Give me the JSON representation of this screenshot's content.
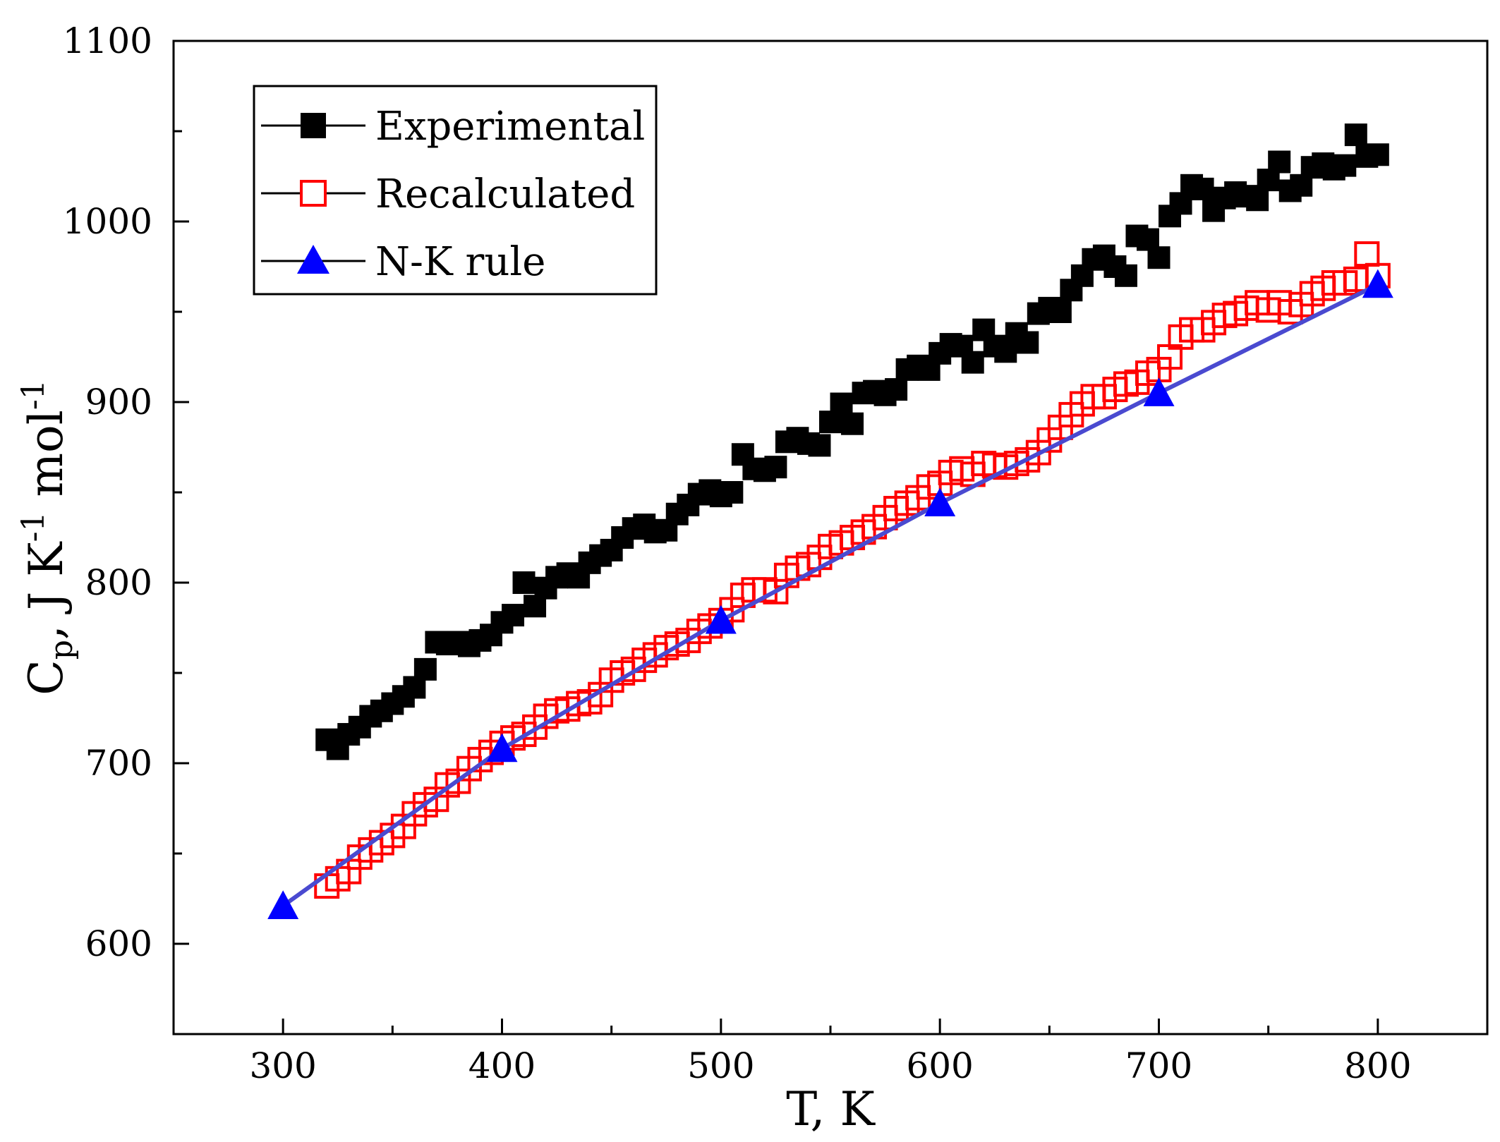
{
  "chart_data": {
    "type": "scatter",
    "xlabel": "T, K",
    "ylabel": {
      "main": "C",
      "sub": "p",
      "rest1": ", J K",
      "sup1": "-1",
      "rest2": " mol",
      "sup2": "-1"
    },
    "xlim": [
      250,
      850
    ],
    "ylim": [
      550,
      1100
    ],
    "xticks": [
      300,
      400,
      500,
      600,
      700,
      800
    ],
    "yticks": [
      600,
      700,
      800,
      900,
      1000,
      1100
    ],
    "grid": false,
    "legend_position": "top-left",
    "series": [
      {
        "name": "Experimental",
        "marker": "filled-square",
        "color": "#000000",
        "x": [
          320,
          325,
          330,
          335,
          340,
          345,
          350,
          355,
          360,
          365,
          370,
          375,
          380,
          385,
          390,
          395,
          400,
          405,
          410,
          415,
          420,
          425,
          430,
          435,
          440,
          445,
          450,
          455,
          460,
          465,
          470,
          475,
          480,
          485,
          490,
          495,
          500,
          505,
          510,
          515,
          520,
          525,
          530,
          535,
          540,
          545,
          550,
          555,
          560,
          565,
          570,
          575,
          580,
          585,
          590,
          595,
          600,
          605,
          610,
          615,
          620,
          625,
          630,
          635,
          640,
          645,
          650,
          655,
          660,
          665,
          670,
          675,
          680,
          685,
          690,
          695,
          700,
          705,
          710,
          715,
          720,
          725,
          730,
          735,
          740,
          745,
          750,
          755,
          760,
          765,
          770,
          775,
          780,
          785,
          790,
          795,
          800
        ],
        "y": [
          713,
          708,
          716,
          720,
          726,
          729,
          733,
          737,
          742,
          752,
          767,
          766,
          767,
          765,
          768,
          771,
          778,
          782,
          800,
          787,
          797,
          803,
          805,
          803,
          811,
          815,
          818,
          825,
          830,
          832,
          828,
          829,
          838,
          843,
          849,
          851,
          848,
          850,
          871,
          863,
          862,
          864,
          878,
          880,
          877,
          876,
          889,
          899,
          888,
          905,
          906,
          904,
          907,
          918,
          920,
          918,
          927,
          932,
          931,
          922,
          940,
          931,
          928,
          938,
          933,
          949,
          952,
          950,
          962,
          970,
          979,
          981,
          975,
          970,
          992,
          990,
          980,
          1003,
          1010,
          1020,
          1018,
          1006,
          1013,
          1016,
          1014,
          1012,
          1023,
          1033,
          1017,
          1020,
          1030,
          1032,
          1029,
          1031,
          1048,
          1036,
          1037
        ]
      },
      {
        "name": "Recalculated",
        "marker": "open-square",
        "color": "#ff0000",
        "x": [
          320,
          325,
          330,
          335,
          340,
          345,
          350,
          355,
          360,
          365,
          370,
          375,
          380,
          385,
          390,
          395,
          400,
          405,
          410,
          415,
          420,
          425,
          430,
          435,
          440,
          445,
          450,
          455,
          460,
          465,
          470,
          475,
          480,
          485,
          490,
          495,
          500,
          505,
          510,
          515,
          520,
          525,
          530,
          535,
          540,
          545,
          550,
          555,
          560,
          565,
          570,
          575,
          580,
          585,
          590,
          595,
          600,
          605,
          610,
          615,
          620,
          625,
          630,
          635,
          640,
          645,
          650,
          655,
          660,
          665,
          670,
          675,
          680,
          685,
          690,
          695,
          700,
          705,
          710,
          715,
          720,
          725,
          730,
          735,
          740,
          745,
          750,
          755,
          760,
          765,
          770,
          775,
          780,
          785,
          790,
          795,
          800
        ],
        "y": [
          632,
          636,
          640,
          648,
          652,
          656,
          660,
          665,
          672,
          677,
          680,
          688,
          690,
          697,
          702,
          706,
          711,
          714,
          716,
          720,
          726,
          729,
          730,
          733,
          734,
          738,
          746,
          750,
          752,
          757,
          760,
          764,
          766,
          768,
          773,
          776,
          779,
          785,
          793,
          796,
          796,
          795,
          804,
          808,
          810,
          814,
          820,
          822,
          825,
          828,
          831,
          836,
          841,
          844,
          847,
          853,
          855,
          861,
          863,
          860,
          866,
          865,
          864,
          866,
          868,
          872,
          879,
          886,
          893,
          899,
          903,
          903,
          907,
          910,
          911,
          916,
          918,
          925,
          936,
          940,
          940,
          944,
          948,
          949,
          952,
          955,
          951,
          955,
          950,
          954,
          960,
          963,
          966,
          966,
          968,
          982,
          970
        ]
      },
      {
        "name": "N-K rule",
        "marker": "filled-triangle",
        "color": "#0000ff",
        "line_color": "#4a4ad0",
        "x": [
          300,
          400,
          500,
          600,
          700,
          800
        ],
        "y": [
          621,
          708,
          779,
          844,
          905,
          965
        ]
      }
    ]
  }
}
